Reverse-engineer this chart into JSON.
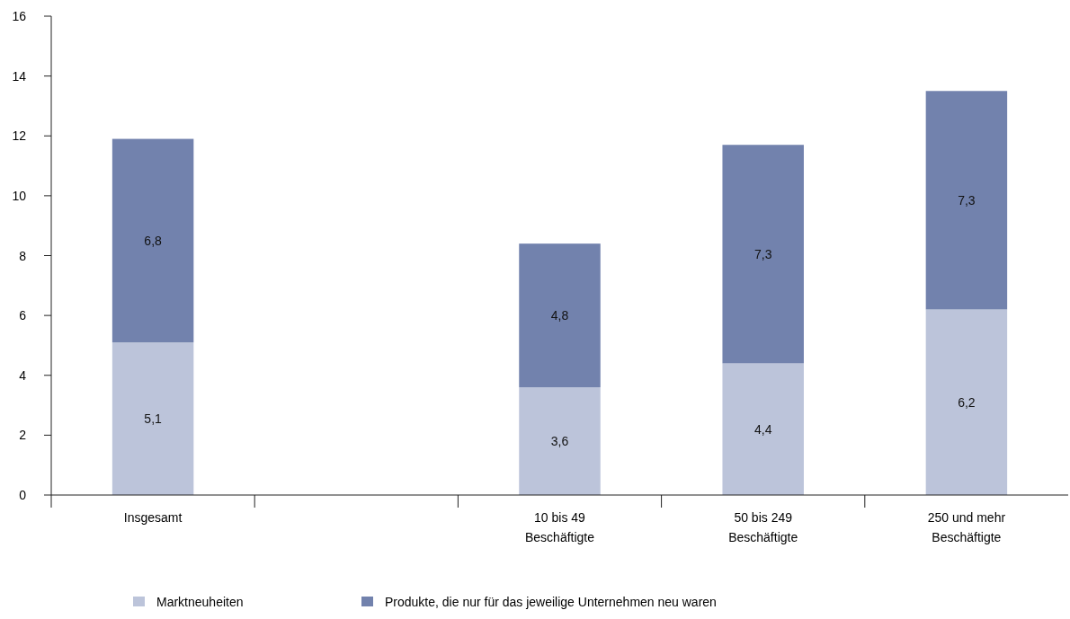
{
  "chart_data": {
    "type": "bar",
    "stacked": true,
    "categories": [
      "Insgesamt",
      null,
      "10 bis 49\nBeschäftigte",
      "50 bis 249\nBeschäftigte",
      "250 und mehr\nBeschäftigte"
    ],
    "series": [
      {
        "name": "Marktneuheiten",
        "color": "#bcc4da",
        "values": [
          5.1,
          null,
          3.6,
          4.4,
          6.2
        ],
        "value_labels": [
          "5,1",
          null,
          "3,6",
          "4,4",
          "6,2"
        ]
      },
      {
        "name": "Produkte, die nur für das jeweilige Unternehmen neu waren",
        "color": "#7282ad",
        "values": [
          6.8,
          null,
          4.8,
          7.3,
          7.3
        ],
        "value_labels": [
          "6,8",
          null,
          "4,8",
          "7,3",
          "7,3"
        ]
      }
    ],
    "ylim": [
      0,
      16
    ],
    "yticks": [
      0,
      2,
      4,
      6,
      8,
      10,
      12,
      14,
      16
    ],
    "grid": false,
    "legend": "bottom left"
  }
}
